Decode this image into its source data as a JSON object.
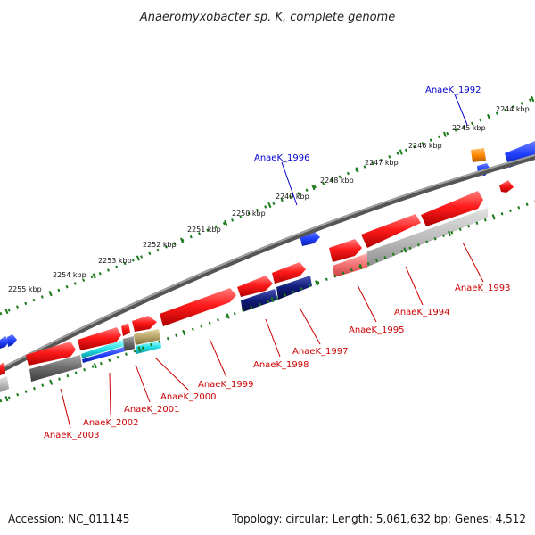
{
  "title": "Anaeromyxobacter sp. K, complete genome",
  "footer": {
    "accession": "Accession: NC_011145",
    "topology": "Topology: circular; Length: 5,061,632 bp; Genes: 4,512"
  },
  "colors": {
    "forward_strand": "#ff1a1a",
    "reverse_rna": "#1f3fff",
    "pseudo": "#ff8800",
    "dark_blue": "#101a78",
    "gray": "#707070",
    "light_gray": "#bdbdbd",
    "cyan": "#22e0e8",
    "khaki": "#b7a46a",
    "outer_label": "#0000cc",
    "inner_label": "#cc0000",
    "ruler": "#1a7a1a"
  },
  "kbp_ticks": [
    "2244 kbp",
    "2245 kbp",
    "2246 kbp",
    "2247 kbp",
    "2248 kbp",
    "2249 kbp",
    "2250 kbp",
    "2251 kbp",
    "2252 kbp",
    "2253 kbp",
    "2254 kbp",
    "2255 kbp"
  ],
  "outer_gene_labels": [
    "AnaeK_1992",
    "AnaeK_1996"
  ],
  "inner_gene_labels": [
    "AnaeK_1993",
    "AnaeK_1994",
    "AnaeK_1995",
    "AnaeK_1997",
    "AnaeK_1998",
    "AnaeK_1999",
    "AnaeK_2000",
    "AnaeK_2001",
    "AnaeK_2002",
    "AnaeK_2003"
  ]
}
